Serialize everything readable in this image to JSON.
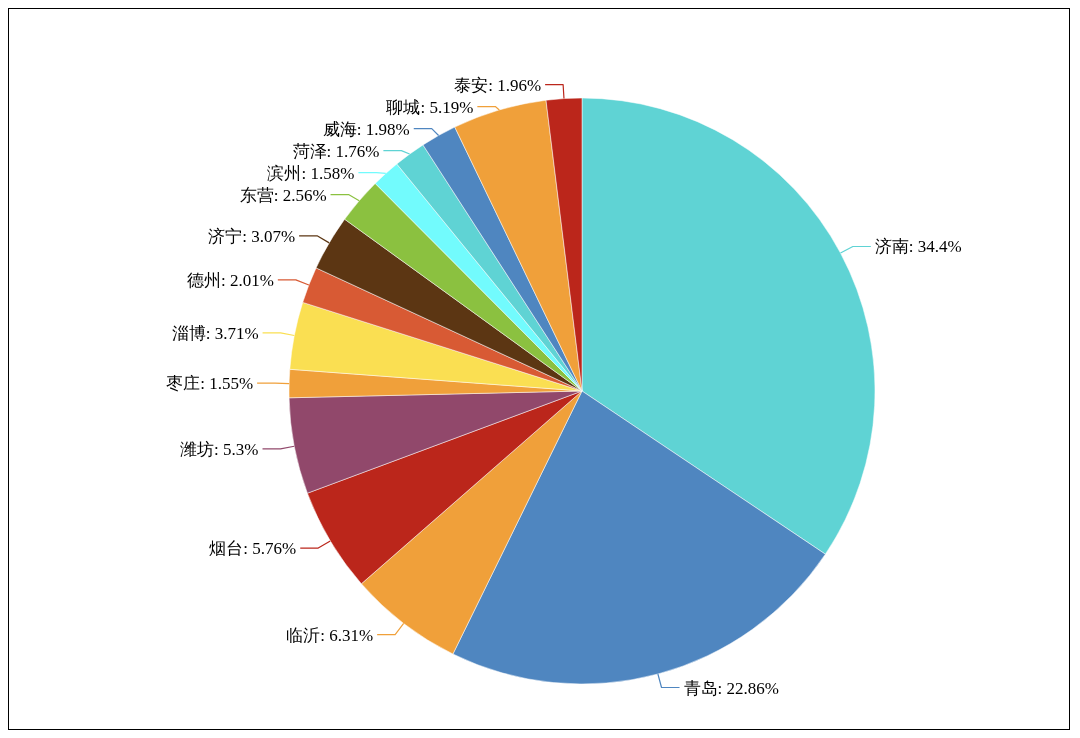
{
  "chart_data": {
    "type": "pie",
    "categories": [
      "济南",
      "青岛",
      "临沂",
      "烟台",
      "潍坊",
      "枣庄",
      "淄博",
      "德州",
      "济宁",
      "东营",
      "滨州",
      "菏泽",
      "威海",
      "聊城",
      "泰安"
    ],
    "values": [
      34.4,
      22.86,
      6.31,
      5.76,
      5.3,
      1.55,
      3.71,
      2.01,
      3.07,
      2.56,
      1.58,
      1.76,
      1.98,
      5.19,
      1.96
    ],
    "value_labels": [
      "34.4%",
      "22.86%",
      "6.31%",
      "5.76%",
      "5.3%",
      "1.55%",
      "3.71%",
      "2.01%",
      "3.07%",
      "2.56%",
      "1.58%",
      "1.76%",
      "1.98%",
      "5.19%",
      "1.96%"
    ],
    "colors": [
      "#5fd3d4",
      "#4f86c0",
      "#f0a03a",
      "#bb261b",
      "#91486b",
      "#f0a03a",
      "#fadf52",
      "#d85a34",
      "#5c3613",
      "#8bc140",
      "#72fbfd",
      "#5fd3d4",
      "#4f86c0",
      "#f0a03a",
      "#bb261b"
    ]
  }
}
